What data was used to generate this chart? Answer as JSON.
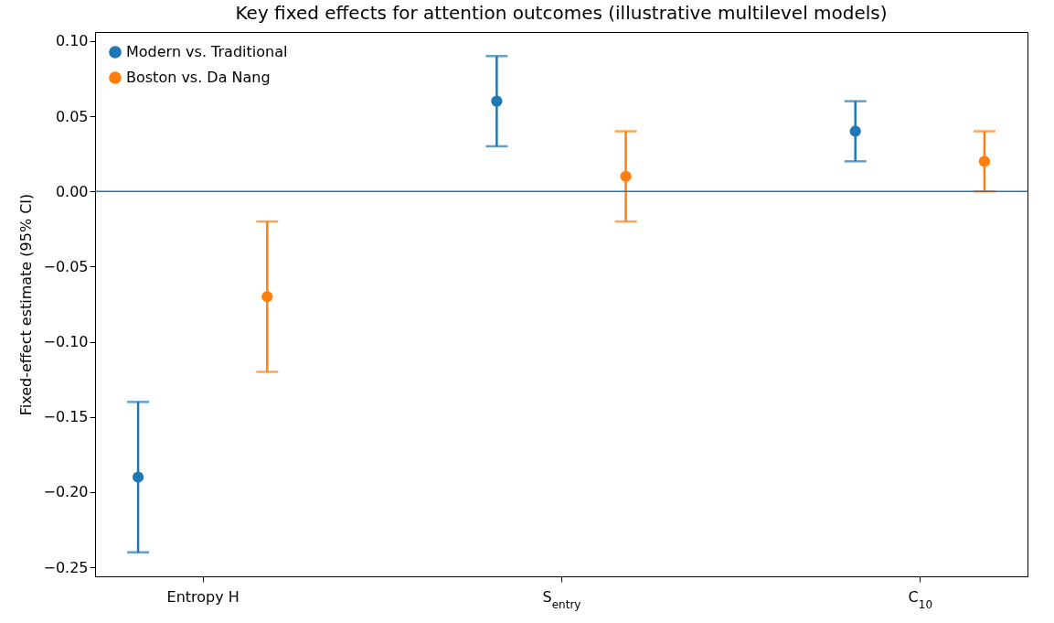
{
  "chart_data": {
    "type": "scatter",
    "title": "Key fixed effects for attention outcomes (illustrative multilevel models)",
    "ylabel": "Fixed-effect estimate (95% CI)",
    "categories": [
      "Entropy H",
      "S$_{entry}$",
      "C$_{10}$"
    ],
    "series": [
      {
        "name": "Modern vs. Traditional",
        "color": "#1f77b4",
        "values": [
          -0.19,
          0.06,
          0.04
        ],
        "errors": [
          [
            -0.24,
            -0.14
          ],
          [
            0.03,
            0.09
          ],
          [
            0.02,
            0.06
          ]
        ]
      },
      {
        "name": "Boston vs. Da Nang",
        "color": "#ff7f0e",
        "values": [
          -0.07,
          0.01,
          0.02
        ],
        "errors": [
          [
            -0.12,
            -0.02
          ],
          [
            -0.02,
            0.04
          ],
          [
            0.0,
            0.04
          ]
        ]
      }
    ],
    "ylim": [
      -0.256,
      0.106
    ],
    "yticks": [
      {
        "value": -0.25,
        "label": "−0.25"
      },
      {
        "value": -0.2,
        "label": "−0.20"
      },
      {
        "value": -0.15,
        "label": "−0.15"
      },
      {
        "value": -0.1,
        "label": "−0.10"
      },
      {
        "value": -0.05,
        "label": "−0.05"
      },
      {
        "value": 0,
        "label": "0.00"
      },
      {
        "value": 0.05,
        "label": "0.05"
      },
      {
        "value": 0.1,
        "label": "0.10"
      }
    ],
    "ref_lines": [
      {
        "axis": "y",
        "value": 0,
        "color": "#1f77b4"
      }
    ],
    "marker": "circle",
    "legend": "top left",
    "grid": false
  }
}
